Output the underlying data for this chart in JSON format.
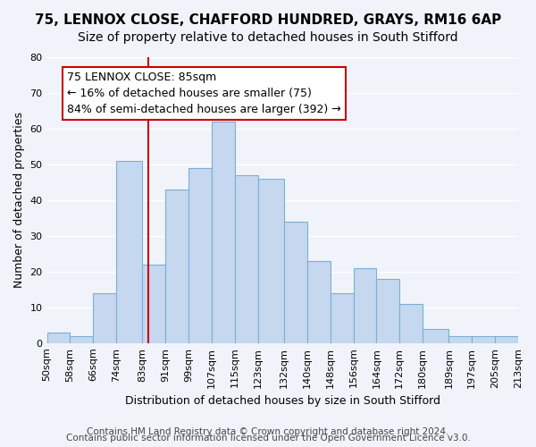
{
  "title1": "75, LENNOX CLOSE, CHAFFORD HUNDRED, GRAYS, RM16 6AP",
  "title2": "Size of property relative to detached houses in South Stifford",
  "xlabel": "Distribution of detached houses by size in South Stifford",
  "ylabel": "Number of detached properties",
  "bin_labels": [
    "50sqm",
    "58sqm",
    "66sqm",
    "74sqm",
    "83sqm",
    "91sqm",
    "99sqm",
    "107sqm",
    "115sqm",
    "123sqm",
    "132sqm",
    "140sqm",
    "148sqm",
    "156sqm",
    "164sqm",
    "172sqm",
    "180sqm",
    "189sqm",
    "197sqm",
    "205sqm",
    "213sqm"
  ],
  "bin_edges": [
    50,
    58,
    66,
    74,
    83,
    91,
    99,
    107,
    115,
    123,
    132,
    140,
    148,
    156,
    164,
    172,
    180,
    189,
    197,
    205,
    213
  ],
  "bar_heights": [
    3,
    2,
    14,
    51,
    22,
    43,
    49,
    62,
    47,
    46,
    34,
    23,
    14,
    21,
    18,
    11,
    4,
    2,
    2,
    2
  ],
  "bar_color": "#c5d8f0",
  "bar_edge_color": "#7bafd4",
  "reference_line_x": 85,
  "reference_line_color": "#cc0000",
  "annotation_text": "75 LENNOX CLOSE: 85sqm\n← 16% of detached houses are smaller (75)\n84% of semi-detached houses are larger (392) →",
  "annotation_box_color": "#ffffff",
  "annotation_box_edge_color": "#cc0000",
  "ylim": [
    0,
    80
  ],
  "yticks": [
    0,
    10,
    20,
    30,
    40,
    50,
    60,
    70,
    80
  ],
  "footer1": "Contains HM Land Registry data © Crown copyright and database right 2024.",
  "footer2": "Contains public sector information licensed under the Open Government Licence v3.0.",
  "background_color": "#f0f4fa",
  "grid_color": "#ffffff",
  "title_fontsize": 11,
  "subtitle_fontsize": 10,
  "axis_label_fontsize": 9,
  "tick_fontsize": 8,
  "annotation_fontsize": 9,
  "footer_fontsize": 7.5
}
